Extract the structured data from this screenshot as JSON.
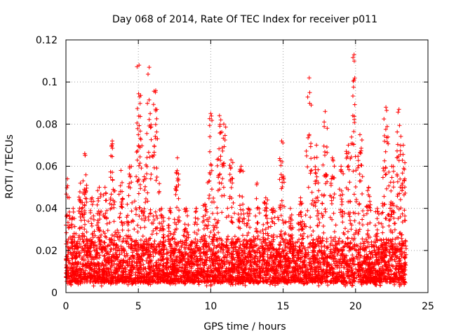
{
  "chart_data": {
    "type": "scatter",
    "title": "Day 068 of 2014, Rate Of TEC Index for receiver p011",
    "xlabel": "GPS time / hours",
    "ylabel": "ROTI / TECUs",
    "xlim": [
      0,
      25
    ],
    "ylim": [
      0,
      0.12
    ],
    "x_ticks": [
      0,
      5,
      10,
      15,
      20,
      25
    ],
    "x_tick_labels": [
      "0",
      "5",
      "10",
      "15",
      "20",
      "25"
    ],
    "y_ticks": [
      0,
      0.02,
      0.04,
      0.06,
      0.08,
      0.1,
      0.12
    ],
    "y_tick_labels": [
      "0",
      "0.02",
      "0.04",
      "0.06",
      "0.08",
      "0.1",
      "0.12"
    ],
    "grid": true,
    "marker": "+",
    "marker_color": "#ff0000",
    "x_range_of_data": [
      0,
      23.5
    ],
    "baseline_band": [
      0.005,
      0.025
    ],
    "series": [
      {
        "name": "ROTI",
        "peaks": [
          {
            "x": 0.1,
            "y": 0.054
          },
          {
            "x": 0.5,
            "y": 0.04
          },
          {
            "x": 1.0,
            "y": 0.052
          },
          {
            "x": 1.3,
            "y": 0.066
          },
          {
            "x": 1.8,
            "y": 0.045
          },
          {
            "x": 2.3,
            "y": 0.05
          },
          {
            "x": 2.7,
            "y": 0.05
          },
          {
            "x": 3.2,
            "y": 0.072
          },
          {
            "x": 3.8,
            "y": 0.058
          },
          {
            "x": 4.4,
            "y": 0.06
          },
          {
            "x": 5.0,
            "y": 0.075
          },
          {
            "x": 5.05,
            "y": 0.108
          },
          {
            "x": 5.4,
            "y": 0.055
          },
          {
            "x": 5.75,
            "y": 0.107
          },
          {
            "x": 6.2,
            "y": 0.096
          },
          {
            "x": 6.6,
            "y": 0.04
          },
          {
            "x": 7.2,
            "y": 0.04
          },
          {
            "x": 7.7,
            "y": 0.064
          },
          {
            "x": 8.3,
            "y": 0.04
          },
          {
            "x": 9.0,
            "y": 0.04
          },
          {
            "x": 9.6,
            "y": 0.042
          },
          {
            "x": 10.0,
            "y": 0.085
          },
          {
            "x": 10.6,
            "y": 0.084
          },
          {
            "x": 10.9,
            "y": 0.08
          },
          {
            "x": 11.4,
            "y": 0.063
          },
          {
            "x": 12.1,
            "y": 0.06
          },
          {
            "x": 12.6,
            "y": 0.04
          },
          {
            "x": 13.2,
            "y": 0.052
          },
          {
            "x": 13.8,
            "y": 0.045
          },
          {
            "x": 14.3,
            "y": 0.04
          },
          {
            "x": 14.9,
            "y": 0.072
          },
          {
            "x": 15.5,
            "y": 0.04
          },
          {
            "x": 16.2,
            "y": 0.045
          },
          {
            "x": 16.8,
            "y": 0.102
          },
          {
            "x": 17.3,
            "y": 0.07
          },
          {
            "x": 17.9,
            "y": 0.086
          },
          {
            "x": 18.4,
            "y": 0.064
          },
          {
            "x": 19.0,
            "y": 0.06
          },
          {
            "x": 19.5,
            "y": 0.07
          },
          {
            "x": 19.9,
            "y": 0.113
          },
          {
            "x": 20.3,
            "y": 0.075
          },
          {
            "x": 20.9,
            "y": 0.05
          },
          {
            "x": 21.5,
            "y": 0.04
          },
          {
            "x": 22.1,
            "y": 0.088
          },
          {
            "x": 22.5,
            "y": 0.06
          },
          {
            "x": 23.0,
            "y": 0.087
          },
          {
            "x": 23.3,
            "y": 0.07
          }
        ]
      }
    ]
  }
}
